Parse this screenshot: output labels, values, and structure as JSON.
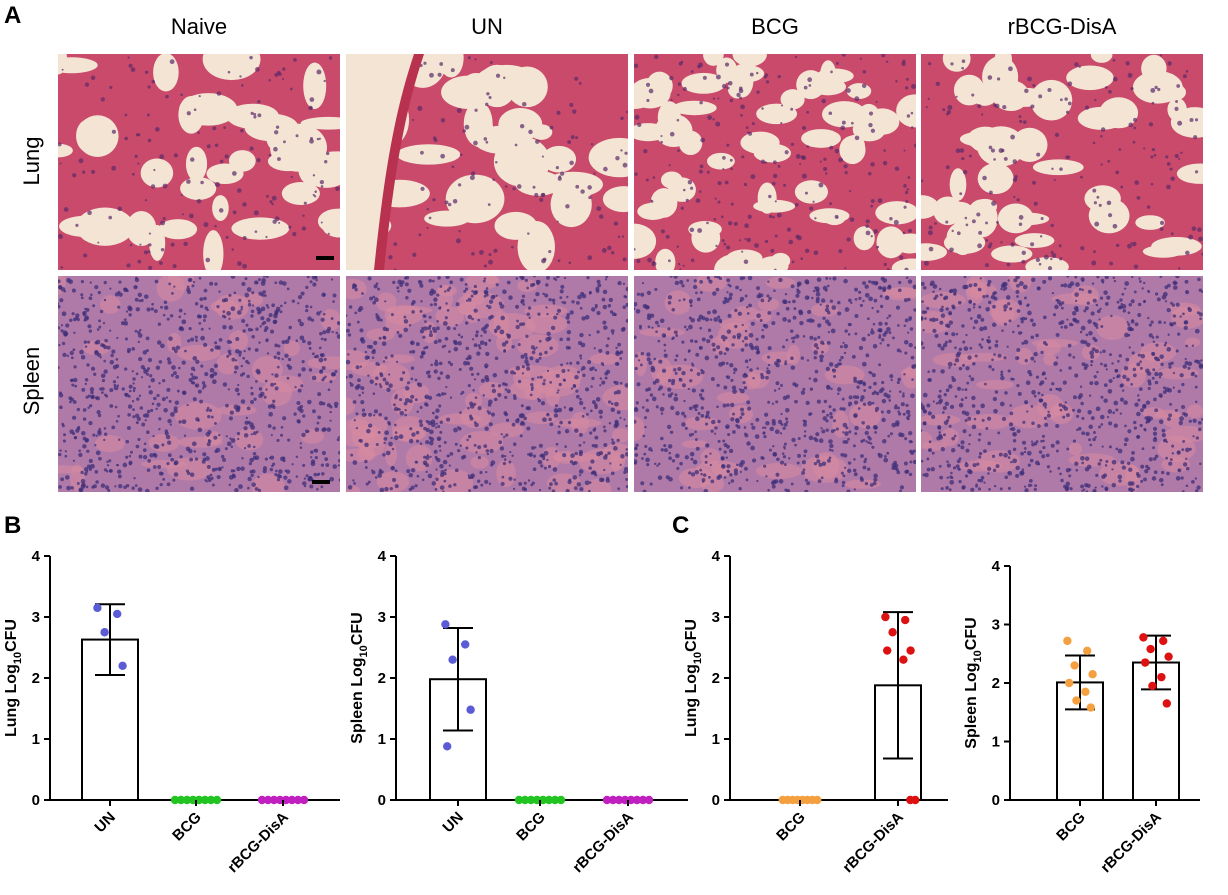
{
  "panels": {
    "A": "A",
    "B": "B",
    "C": "C"
  },
  "micrographs": {
    "columns": [
      "Naive",
      "UN",
      "BCG",
      "rBCG-DisA"
    ],
    "rows": [
      "Lung",
      "Spleen"
    ],
    "colors": {
      "lung_bg": "#f4e4d4",
      "lung_tissue": "#c94a6a",
      "lung_nuclei": "#5a2a6a",
      "spleen_bg": "#b07aa8",
      "spleen_nuclei": "#3d2f7a",
      "spleen_pink": "#d98aa0"
    }
  },
  "chart_data": [
    {
      "panel": "B",
      "type": "bar",
      "categories": [
        "UN",
        "BCG",
        "rBCG-DisA"
      ],
      "values": [
        2.63,
        0,
        0
      ],
      "error": [
        0.58,
        0,
        0
      ],
      "points": [
        [
          3.15,
          3.05,
          2.75,
          2.2
        ],
        [
          0,
          0,
          0,
          0,
          0,
          0,
          0,
          0
        ],
        [
          0,
          0,
          0,
          0,
          0,
          0,
          0,
          0
        ]
      ],
      "point_colors": [
        "#5b5bd6",
        "#22c422",
        "#c020c0"
      ],
      "ylabel_main": "Lung Log",
      "ylabel_sub": "10",
      "ylabel_end": "CFU",
      "ylim": [
        0,
        4
      ],
      "yticks": [
        "0",
        "1",
        "2",
        "3",
        "4"
      ]
    },
    {
      "panel": "B",
      "type": "bar",
      "categories": [
        "UN",
        "BCG",
        "rBCG-DisA"
      ],
      "values": [
        1.98,
        0,
        0
      ],
      "error": [
        0.84,
        0,
        0
      ],
      "points": [
        [
          2.88,
          2.55,
          2.3,
          1.48,
          0.88
        ],
        [
          0,
          0,
          0,
          0,
          0,
          0,
          0,
          0
        ],
        [
          0,
          0,
          0,
          0,
          0,
          0,
          0,
          0
        ]
      ],
      "point_colors": [
        "#5b5bd6",
        "#22c422",
        "#c020c0"
      ],
      "ylabel_main": "Spleen Log",
      "ylabel_sub": "10",
      "ylabel_end": "CFU",
      "ylim": [
        0,
        4
      ],
      "yticks": [
        "0",
        "1",
        "2",
        "3",
        "4"
      ]
    },
    {
      "panel": "C",
      "type": "bar",
      "categories": [
        "BCG",
        "rBCG-DisA"
      ],
      "values": [
        0,
        1.88
      ],
      "error": [
        0,
        1.2
      ],
      "points": [
        [
          0,
          0,
          0,
          0,
          0,
          0,
          0,
          0
        ],
        [
          3.0,
          2.95,
          2.75,
          2.45,
          2.45,
          2.3,
          0,
          0
        ]
      ],
      "point_colors": [
        "#f5a040",
        "#dd1111"
      ],
      "ylabel_main": "Lung Log",
      "ylabel_sub": "10",
      "ylabel_end": "CFU",
      "ylim": [
        0,
        4
      ],
      "yticks": [
        "0",
        "1",
        "2",
        "3",
        "4"
      ]
    },
    {
      "panel": "C",
      "type": "bar",
      "categories": [
        "BCG",
        "rBCG-DisA"
      ],
      "values": [
        2.01,
        2.35
      ],
      "error": [
        0.46,
        0.46
      ],
      "points": [
        [
          2.72,
          2.55,
          2.3,
          2.15,
          2.0,
          1.85,
          1.7,
          1.58
        ],
        [
          2.78,
          2.72,
          2.58,
          2.45,
          2.35,
          2.1,
          1.95,
          1.65
        ]
      ],
      "point_colors": [
        "#f5a040",
        "#dd1111"
      ],
      "ylabel_main": "Spleen Log",
      "ylabel_sub": "10",
      "ylabel_end": "CFU",
      "ylim": [
        0,
        4
      ],
      "yticks": [
        "0",
        "1",
        "2",
        "3",
        "4"
      ]
    }
  ]
}
